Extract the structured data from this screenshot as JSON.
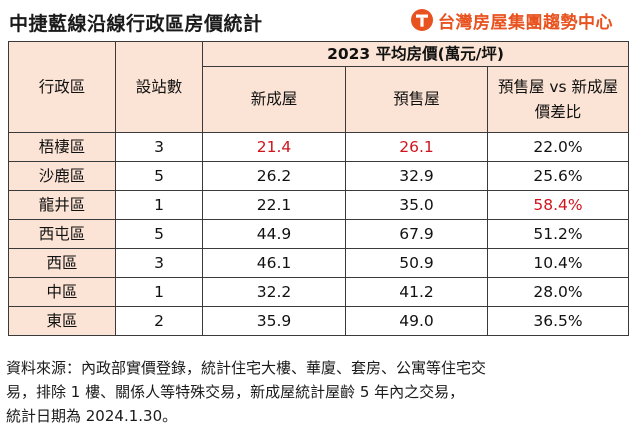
{
  "title": "中捷藍線沿線行政區房價統計",
  "brand": {
    "name": "台灣房屋集團趨勢中心",
    "color": "#e8521f",
    "logo_icon": "tw-house-logo-icon"
  },
  "table": {
    "headers": {
      "district": "行政區",
      "stations": "設站數",
      "year_group": "2023 平均房價(萬元/坪)",
      "new": "新成屋",
      "presale": "預售屋",
      "diff_line1": "預售屋 vs 新成屋",
      "diff_line2": "價差比"
    },
    "rows": [
      {
        "district": "梧棲區",
        "stations": "3",
        "new": "21.4",
        "presale": "26.1",
        "diff": "22.0%",
        "highlight": [
          "new",
          "presale"
        ]
      },
      {
        "district": "沙鹿區",
        "stations": "5",
        "new": "26.2",
        "presale": "32.9",
        "diff": "25.6%",
        "highlight": []
      },
      {
        "district": "龍井區",
        "stations": "1",
        "new": "22.1",
        "presale": "35.0",
        "diff": "58.4%",
        "highlight": [
          "diff"
        ]
      },
      {
        "district": "西屯區",
        "stations": "5",
        "new": "44.9",
        "presale": "67.9",
        "diff": "51.2%",
        "highlight": []
      },
      {
        "district": "西區",
        "stations": "3",
        "new": "46.1",
        "presale": "50.9",
        "diff": "10.4%",
        "highlight": []
      },
      {
        "district": "中區",
        "stations": "1",
        "new": "32.2",
        "presale": "41.2",
        "diff": "28.0%",
        "highlight": []
      },
      {
        "district": "東區",
        "stations": "2",
        "new": "35.9",
        "presale": "49.0",
        "diff": "36.5%",
        "highlight": []
      }
    ],
    "header_bg": "#fbe4d5",
    "highlight_color": "#d0141e"
  },
  "source": {
    "line1": "資料來源：內政部實價登錄，統計住宅大樓、華廈、套房、公寓等住宅交",
    "line2": "易，排除 1 樓、關係人等特殊交易，新成屋統計屋齡 5 年內之交易，",
    "line3": "統計日期為 2024.1.30。"
  }
}
